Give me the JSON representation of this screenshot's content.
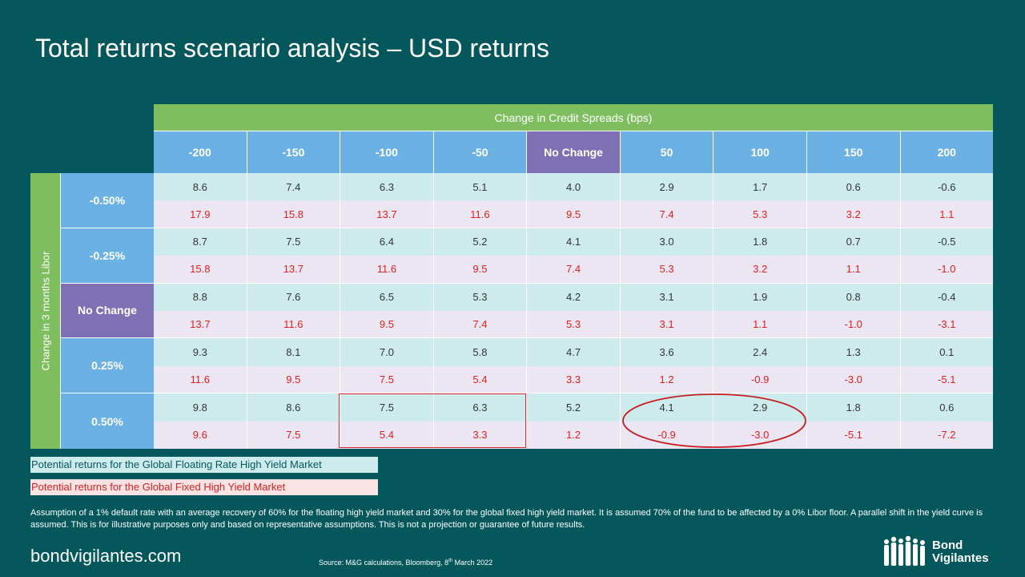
{
  "title": "Total returns scenario analysis – USD returns",
  "credit_spreads_label": "Change in Credit Spreads (bps)",
  "libor_label": "Change in 3 months Libor",
  "columns": [
    "-200",
    "-150",
    "-100",
    "-50",
    "No Change",
    "50",
    "100",
    "150",
    "200"
  ],
  "rows": [
    {
      "label": "-0.50%",
      "floating": [
        "8.6",
        "7.4",
        "6.3",
        "5.1",
        "4.0",
        "2.9",
        "1.7",
        "0.6",
        "-0.6"
      ],
      "fixed": [
        "17.9",
        "15.8",
        "13.7",
        "11.6",
        "9.5",
        "7.4",
        "5.3",
        "3.2",
        "1.1"
      ]
    },
    {
      "label": "-0.25%",
      "floating": [
        "8.7",
        "7.5",
        "6.4",
        "5.2",
        "4.1",
        "3.0",
        "1.8",
        "0.7",
        "-0.5"
      ],
      "fixed": [
        "15.8",
        "13.7",
        "11.6",
        "9.5",
        "7.4",
        "5.3",
        "3.2",
        "1.1",
        "-1.0"
      ]
    },
    {
      "label": "No Change",
      "floating": [
        "8.8",
        "7.6",
        "6.5",
        "5.3",
        "4.2",
        "3.1",
        "1.9",
        "0.8",
        "-0.4"
      ],
      "fixed": [
        "13.7",
        "11.6",
        "9.5",
        "7.4",
        "5.3",
        "3.1",
        "1.1",
        "-1.0",
        "-3.1"
      ]
    },
    {
      "label": "0.25%",
      "floating": [
        "9.3",
        "8.1",
        "7.0",
        "5.8",
        "4.7",
        "3.6",
        "2.4",
        "1.3",
        "0.1"
      ],
      "fixed": [
        "11.6",
        "9.5",
        "7.5",
        "5.4",
        "3.3",
        "1.2",
        "-0.9",
        "-3.0",
        "-5.1"
      ]
    },
    {
      "label": "0.50%",
      "floating": [
        "9.8",
        "8.6",
        "7.5",
        "6.3",
        "5.2",
        "4.1",
        "2.9",
        "1.8",
        "0.6"
      ],
      "fixed": [
        "9.6",
        "7.5",
        "5.4",
        "3.3",
        "1.2",
        "-0.9",
        "-3.0",
        "-5.1",
        "-7.2"
      ]
    }
  ],
  "legend": {
    "floating": "Potential returns for the Global Floating Rate High Yield Market",
    "fixed": "Potential returns for the Global Fixed High Yield Market"
  },
  "footnote": "Assumption of a 1% default rate with an average recovery of 60% for the  floating high yield market and 30% for the  global fixed high yield market. It is assumed 70% of the fund to be affected by a 0% Libor floor. A parallel shift in the yield curve is assumed. This is for illustrative purposes only and based on representative assumptions. This is not a projection or guarantee of future results.",
  "site": "bondvigilantes.com",
  "source": {
    "prefix": "Source: M&G calculations, Bloomberg, 8",
    "sup": "th",
    "suffix": " March 2022"
  },
  "logo": {
    "line1": "Bond",
    "line2": "Vigilantes"
  },
  "colors": {
    "background": "#04585c",
    "green_header": "#7fbe5e",
    "blue_header": "#6bb1e4",
    "purple_header": "#7f70b4",
    "floating_row": "#cdebec",
    "fixed_row": "#ebe6f1",
    "fixed_text": "#e0201f",
    "highlight": "#d22a2a"
  }
}
